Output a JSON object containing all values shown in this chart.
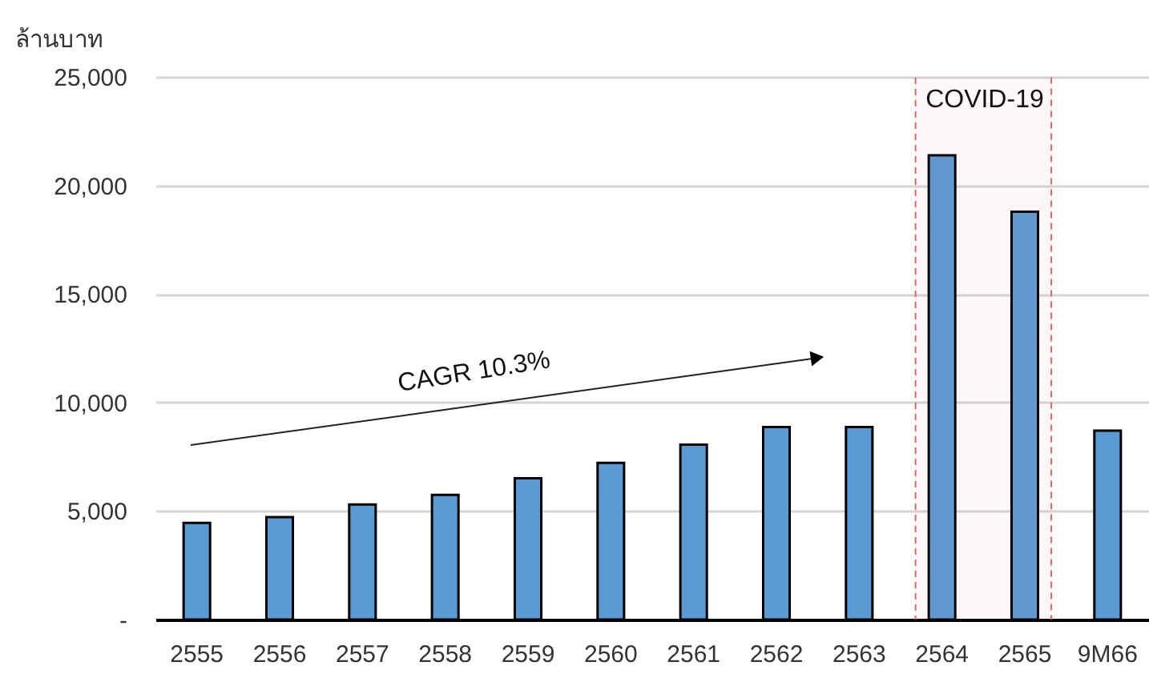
{
  "chart_data": {
    "type": "bar",
    "ylabel": "ล้านบาท",
    "categories": [
      "2555",
      "2556",
      "2557",
      "2558",
      "2559",
      "2560",
      "2561",
      "2562",
      "2563",
      "2564",
      "2565",
      "9M66"
    ],
    "values": [
      4450,
      4720,
      5300,
      5740,
      6510,
      7220,
      8060,
      8870,
      8870,
      21390,
      18790,
      8700
    ],
    "color": "#5b9bd5",
    "ylim": [
      0,
      25000
    ],
    "yticks": [
      {
        "value": 0,
        "label": "-"
      },
      {
        "value": 5000,
        "label": "5,000"
      },
      {
        "value": 10000,
        "label": "10,000"
      },
      {
        "value": 15000,
        "label": "15,000"
      },
      {
        "value": 20000,
        "label": "20,000"
      },
      {
        "value": 25000,
        "label": "25,000"
      }
    ],
    "grid": "y",
    "bands": [
      {
        "axis": "x",
        "from": "2564",
        "to": "2565",
        "label": "COVID-19",
        "color": "#e06666"
      }
    ],
    "annotations": [
      "CAGR 10.3%"
    ]
  }
}
